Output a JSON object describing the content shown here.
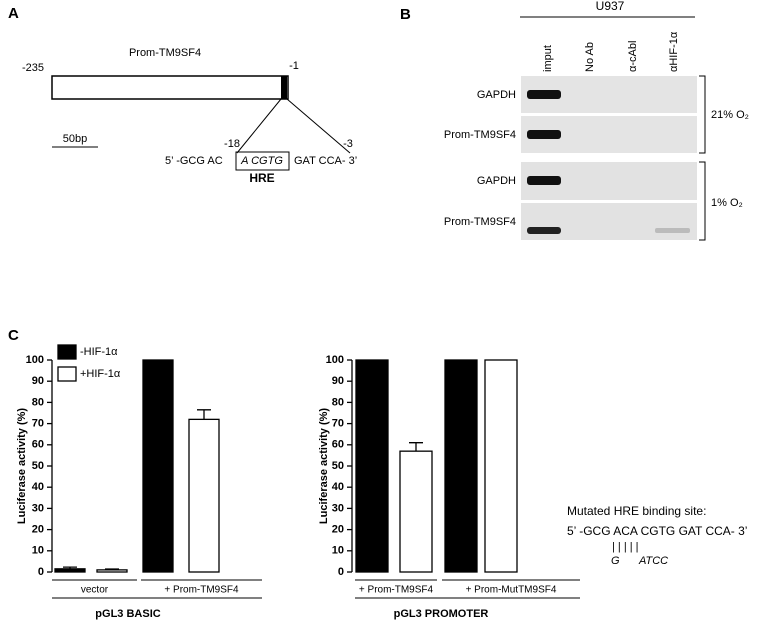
{
  "panel_a": {
    "label": "A",
    "construct": "Prom-TM9SF4",
    "start": "-235",
    "end": "-1",
    "scale": "50bp",
    "hre_start": "-18",
    "hre_end": "-3",
    "seq_left": "5’ -GCG AC",
    "seq_box": "A CGTG",
    "seq_right": "GAT  CCA- 3’",
    "hre": "HRE"
  },
  "panel_b": {
    "label": "B",
    "cell_line": "U937",
    "lanes": [
      "imput",
      "No Ab",
      "α-cAbl",
      "αHIF-1α"
    ],
    "rows": [
      "GAPDH",
      "Prom-TM9SF4",
      "GAPDH",
      "Prom-TM9SF4"
    ],
    "conditions": [
      "21% O₂",
      "1% O₂"
    ]
  },
  "panel_c": {
    "label": "C",
    "mutation_title": "Mutated HRE binding site:",
    "mutation_seq": "5’ -GCG ACA CGTG GAT CCA- 3’",
    "mutation_marks": "|      | | | |",
    "mutation_base": "G",
    "mutation_bases": "ATCC"
  },
  "chart_data": [
    {
      "type": "bar",
      "ylabel": "Luciferase activity (%)",
      "xlabel": "pGL3 BASIC",
      "categories": [
        "vector",
        "+ Prom-TM9SF4"
      ],
      "series": [
        {
          "name": "-HIF-1α",
          "color": "#000000",
          "values": [
            1.5,
            100
          ],
          "errors": [
            0.8,
            null
          ]
        },
        {
          "name": "+HIF-1α",
          "color": "#ffffff",
          "values": [
            1,
            72
          ],
          "errors": [
            0.4,
            4.5
          ]
        }
      ],
      "ylim": [
        0,
        100
      ],
      "yticks": [
        0,
        10,
        20,
        30,
        40,
        50,
        60,
        70,
        80,
        90,
        100
      ],
      "legend": "upper left"
    },
    {
      "type": "bar",
      "ylabel": "Luciferase activity (%)",
      "xlabel": "pGL3 PROMOTER",
      "categories": [
        "+ Prom-TM9SF4",
        "+ Prom-MutTM9SF4"
      ],
      "series": [
        {
          "color": "#000000",
          "values": [
            100,
            100
          ],
          "errors": [
            null,
            null
          ]
        },
        {
          "color": "#ffffff",
          "values": [
            57,
            100
          ],
          "errors": [
            4,
            null
          ]
        }
      ],
      "ylim": [
        0,
        100
      ],
      "yticks": [
        0,
        10,
        20,
        30,
        40,
        50,
        60,
        70,
        80,
        90,
        100
      ]
    }
  ]
}
